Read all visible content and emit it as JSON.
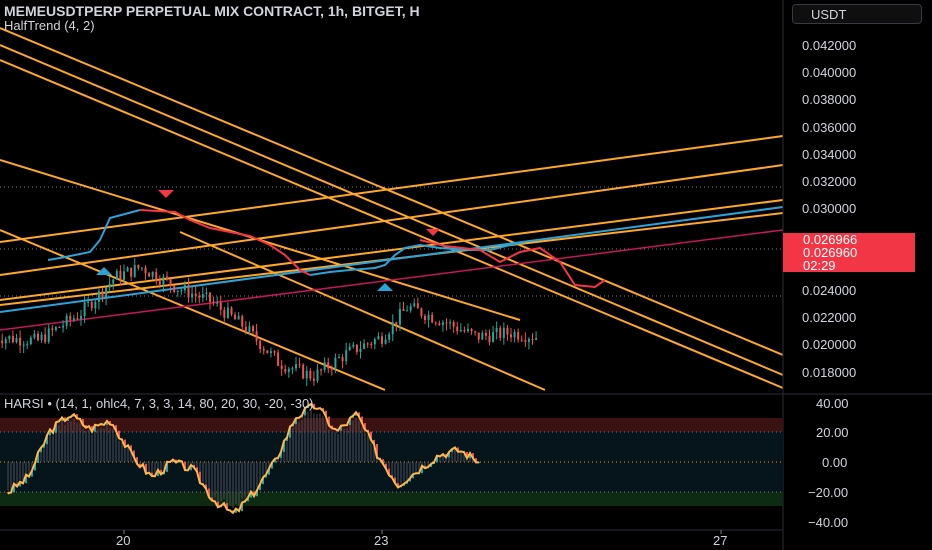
{
  "header": {
    "title": "MEMEUSDTPERP PERPETUAL MIX CONTRACT, 1h, BITGET, H",
    "indicator": "HalfTrend (4, 2)",
    "currency": "USDT"
  },
  "price_axis": {
    "labels": [
      "0.042000",
      "0.040000",
      "0.038000",
      "0.036000",
      "0.034000",
      "0.032000",
      "0.030000",
      "0.024000",
      "0.022000",
      "0.020000",
      "0.018000"
    ],
    "price_tags": [
      "0.026966",
      "0.026960",
      "02:29"
    ]
  },
  "harsi": {
    "legend": "HARSI • (14, 1, ohlc4, 7, 3, 3, 14, 80, 20, 30, -20, -30)",
    "axis_labels": [
      "40.00",
      "20.00",
      "0.00",
      "−20.00",
      "−40.00"
    ]
  },
  "time_axis": {
    "labels": [
      "20",
      "23",
      "27"
    ]
  },
  "colors": {
    "background": "#000000",
    "trendlines": "#ffa726",
    "halftrend_up": "#2ba3d8",
    "halftrend_down": "#f23645",
    "candle_up": "#26a69a",
    "candle_down": "#ef5350",
    "magenta_line": "#c2185b",
    "price_tag": "#f23645"
  },
  "chart_data": [
    {
      "type": "line",
      "x": [
        18.5,
        19.0,
        19.5,
        19.9,
        20.2,
        20.6,
        21.0,
        21.4,
        21.8,
        22.2,
        22.6,
        23.0,
        23.3,
        23.7,
        24.1,
        24.5,
        24.8
      ],
      "series": [
        {
          "values": [
            0.027,
            0.0268,
            0.0282,
            0.03,
            0.0305,
            0.0295,
            0.0288,
            0.0275,
            0.0257,
            0.025,
            0.0262,
            0.027,
            0.0285,
            0.0278,
            0.027,
            0.0272,
            0.027
          ]
        }
      ],
      "annotations": [
        "0.026966",
        "0.026960",
        "02:29"
      ],
      "xlabels": [
        "20",
        "23",
        "27"
      ],
      "ylim": [
        0.0168,
        0.0434
      ],
      "grid": false
    },
    {
      "type": "line",
      "series": [
        {
          "values": [
            -20,
            -10,
            20,
            32,
            22,
            28,
            5,
            -10,
            0,
            -5,
            -25,
            -35,
            -20,
            0,
            30,
            38,
            20,
            32,
            5,
            -15,
            -5,
            5,
            8,
            0
          ]
        }
      ],
      "ylim": [
        -40,
        40
      ],
      "annotations": [
        "40.00",
        "20.00",
        "0.00",
        "−20.00",
        "−40.00"
      ]
    }
  ]
}
